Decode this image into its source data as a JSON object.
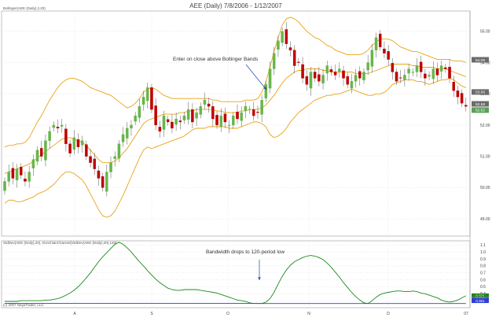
{
  "title": "AEE (Daily)  7/8/2006 - 1/12/2007",
  "upper_panel": {
    "indicator_label": "Bollinger(AEE (Daily),2,20)",
    "annotation": "Enter on close above Bollinger Bands"
  },
  "lower_panel": {
    "indicator_label": "StdDev(AEE (Daily),20), DonchianChannel(StdDev(AEE (Daily),20),120)",
    "annotation": "Bandwidth drops to 120-period low",
    "copyright": "(c) 2007 NinjaTrader, LLC"
  },
  "colors": {
    "up_candle": "#66b64a",
    "down_candle": "#c00000",
    "bollinger": "#e8a317",
    "stddev": "#1a8a1a",
    "donchian": "#2c3fd6",
    "grid": "#d8d8d8",
    "arrow": "#1f3fbf"
  },
  "chart_data": [
    {
      "type": "candlestick",
      "title": "AEE (Daily)  7/8/2006 - 1/12/2007",
      "x_ticks": [
        "A",
        "S",
        "O",
        "N",
        "D",
        "07"
      ],
      "y_ticks": [
        49.0,
        50.0,
        51.0,
        52.0,
        53.0,
        54.0,
        55.0
      ],
      "ylim": [
        48.45,
        55.65
      ],
      "price_labels": [
        "54.09",
        "53.06",
        "52.58",
        "52.62"
      ],
      "close": [
        50.2,
        50.5,
        50.3,
        50.6,
        50.4,
        50.2,
        50.5,
        50.9,
        51.2,
        51.0,
        51.5,
        51.8,
        52.0,
        51.9,
        52.0,
        51.4,
        51.1,
        51.6,
        51.3,
        51.5,
        51.0,
        50.8,
        50.6,
        50.3,
        50.0,
        50.5,
        50.8,
        51.0,
        51.4,
        51.7,
        51.9,
        52.0,
        52.3,
        52.6,
        52.9,
        53.2,
        52.5,
        52.0,
        51.8,
        52.3,
        52.1,
        51.9,
        52.2,
        52.1,
        52.3,
        52.5,
        52.1,
        52.4,
        52.6,
        52.8,
        52.6,
        52.2,
        52.0,
        52.3,
        52.1,
        52.0,
        52.3,
        52.2,
        52.4,
        52.6,
        52.5,
        52.3,
        52.4,
        52.8,
        53.3,
        53.8,
        54.3,
        54.7,
        55.0,
        54.6,
        54.4,
        53.9,
        54.0,
        53.5,
        53.3,
        53.7,
        53.5,
        53.4,
        53.6,
        53.9,
        53.7,
        53.6,
        53.8,
        53.5,
        53.3,
        53.4,
        53.6,
        53.5,
        53.7,
        54.0,
        54.4,
        54.8,
        54.5,
        54.3,
        54.1,
        53.7,
        53.4,
        53.5,
        53.6,
        53.8,
        53.7,
        53.9,
        53.7,
        53.5,
        53.6,
        53.8,
        53.6,
        53.9,
        53.8,
        53.5,
        53.1,
        52.9,
        52.7,
        52.6
      ],
      "series": [
        {
          "values": [
            49.5,
            49.6,
            49.6,
            49.55,
            49.55,
            49.6,
            49.65,
            49.7,
            49.8,
            49.85,
            49.9,
            50.0,
            50.1,
            50.25,
            50.4,
            50.5,
            50.5,
            50.45,
            50.35,
            50.25,
            50.05,
            49.8,
            49.55,
            49.3,
            49.1,
            49.05,
            49.1,
            49.25,
            49.5,
            49.75,
            50.05,
            50.35,
            50.65,
            50.95,
            51.2,
            51.3,
            51.25,
            51.3,
            51.35,
            51.4,
            51.45,
            51.5,
            51.55,
            51.6,
            51.65,
            51.75,
            51.85,
            51.9,
            51.9,
            51.9,
            51.95,
            51.95,
            51.95,
            51.95,
            51.95,
            51.9,
            51.9,
            51.9,
            51.95,
            52.0,
            52.05,
            52.1,
            52.1,
            52.05,
            51.95,
            51.7,
            51.6,
            51.65,
            51.75,
            51.9,
            52.1,
            52.25,
            52.4,
            52.5,
            52.6,
            52.7,
            52.8,
            52.85,
            52.9,
            52.95,
            52.95,
            53.0,
            53.0,
            53.05,
            53.1,
            53.15,
            53.1,
            53.05,
            53.0,
            52.95,
            52.95,
            53.0,
            53.0,
            53.05,
            53.15,
            53.3,
            53.35,
            53.4,
            53.45,
            53.45,
            53.45,
            53.4,
            53.4,
            53.35,
            53.3,
            53.35,
            53.4,
            53.45,
            53.45,
            53.5,
            53.45,
            53.35,
            53.25,
            53.2
          ]
        },
        {
          "values": [
            50.45,
            50.5,
            50.55,
            50.6,
            50.65,
            50.7,
            50.75,
            50.85,
            50.95,
            51.05,
            51.15,
            51.25,
            51.35,
            51.45,
            51.55,
            51.6,
            51.6,
            51.55,
            51.5,
            51.45,
            51.35,
            51.2,
            51.05,
            50.9,
            50.8,
            50.8,
            50.8,
            50.85,
            50.95,
            51.1,
            51.25,
            51.45,
            51.65,
            51.85,
            52.05,
            52.15,
            52.2,
            52.25,
            52.3,
            52.35,
            52.35,
            52.35,
            52.35,
            52.4,
            52.4,
            52.45,
            52.45,
            52.5,
            52.5,
            52.5,
            52.5,
            52.5,
            52.45,
            52.45,
            52.4,
            52.4,
            52.4,
            52.4,
            52.45,
            52.45,
            52.5,
            52.5,
            52.5,
            52.55,
            52.65,
            52.8,
            52.95,
            53.15,
            53.35,
            53.5,
            53.6,
            53.7,
            53.75,
            53.75,
            53.8,
            53.8,
            53.8,
            53.8,
            53.75,
            53.75,
            53.7,
            53.7,
            53.7,
            53.7,
            53.7,
            53.7,
            53.65,
            53.65,
            53.65,
            53.65,
            53.7,
            53.75,
            53.8,
            53.85,
            53.9,
            53.95,
            53.95,
            53.95,
            53.95,
            53.95,
            53.9,
            53.9,
            53.85,
            53.85,
            53.85,
            53.85,
            53.8,
            53.8,
            53.8,
            53.75,
            53.7,
            53.65,
            53.6,
            53.55
          ]
        },
        {
          "values": [
            51.3,
            51.35,
            51.35,
            51.4,
            51.4,
            51.45,
            51.6,
            51.85,
            52.1,
            52.3,
            52.55,
            52.8,
            53.0,
            53.2,
            53.35,
            53.45,
            53.5,
            53.5,
            53.45,
            53.4,
            53.3,
            53.2,
            53.15,
            53.1,
            53.05,
            53.0,
            52.95,
            52.85,
            52.75,
            52.65,
            52.55,
            52.6,
            52.7,
            52.85,
            53.05,
            53.15,
            53.2,
            53.15,
            53.05,
            52.95,
            52.9,
            52.85,
            52.85,
            52.85,
            52.85,
            52.85,
            52.85,
            52.85,
            52.85,
            52.85,
            52.85,
            52.8,
            52.8,
            52.75,
            52.75,
            52.75,
            52.75,
            52.75,
            52.75,
            52.8,
            52.8,
            52.8,
            52.85,
            53.05,
            53.4,
            53.85,
            54.35,
            54.8,
            55.2,
            55.4,
            55.45,
            55.4,
            55.3,
            55.15,
            55.0,
            54.9,
            54.8,
            54.75,
            54.65,
            54.55,
            54.5,
            54.4,
            54.35,
            54.3,
            54.25,
            54.25,
            54.25,
            54.25,
            54.3,
            54.4,
            54.55,
            54.65,
            54.75,
            54.75,
            54.75,
            54.7,
            54.6,
            54.5,
            54.45,
            54.4,
            54.35,
            54.35,
            54.3,
            54.25,
            54.2,
            54.15,
            54.1,
            54.1,
            54.1,
            54.1,
            54.05,
            54.05,
            54.05,
            54.0
          ]
        }
      ]
    },
    {
      "type": "line",
      "y_ticks": [
        0.3,
        0.4,
        0.5,
        0.6,
        0.7,
        0.8,
        0.9,
        1.0,
        1.1
      ],
      "ylim": [
        0.2,
        1.16
      ],
      "price_labels": [
        "0.371",
        "0.326",
        "0.301"
      ],
      "series": [
        {
          "values": [
            0.29,
            0.29,
            0.29,
            0.29,
            0.3,
            0.3,
            0.3,
            0.3,
            0.3,
            0.3,
            0.31,
            0.31,
            0.32,
            0.33,
            0.35,
            0.38,
            0.41,
            0.45,
            0.5,
            0.56,
            0.63,
            0.7,
            0.78,
            0.86,
            0.93,
            0.99,
            1.05,
            1.11,
            1.14,
            1.11,
            1.06,
            1.0,
            0.93,
            0.86,
            0.8,
            0.73,
            0.67,
            0.61,
            0.56,
            0.52,
            0.48,
            0.46,
            0.45,
            0.45,
            0.46,
            0.46,
            0.46,
            0.46,
            0.45,
            0.44,
            0.43,
            0.42,
            0.41,
            0.39,
            0.37,
            0.35,
            0.33,
            0.31,
            0.3,
            0.29,
            0.27,
            0.26,
            0.26,
            0.26,
            0.28,
            0.33,
            0.42,
            0.54,
            0.65,
            0.74,
            0.81,
            0.86,
            0.89,
            0.92,
            0.94,
            0.95,
            0.94,
            0.92,
            0.89,
            0.84,
            0.78,
            0.71,
            0.64,
            0.56,
            0.49,
            0.42,
            0.36,
            0.31,
            0.27,
            0.26,
            0.3,
            0.35,
            0.39,
            0.41,
            0.42,
            0.43,
            0.44,
            0.44,
            0.43,
            0.43,
            0.44,
            0.43,
            0.41,
            0.4,
            0.38,
            0.36,
            0.34,
            0.31,
            0.29,
            0.28,
            0.29,
            0.31,
            0.34,
            0.371
          ]
        },
        {
          "values": [
            0.261,
            0.261,
            0.261,
            0.261,
            0.261,
            0.261,
            0.261,
            0.261,
            0.261,
            0.261,
            0.261,
            0.261,
            0.261,
            0.261,
            0.261,
            0.261,
            0.261,
            0.261,
            0.261,
            0.261,
            0.261,
            0.261,
            0.261,
            0.261,
            0.261,
            0.261,
            0.261,
            0.261,
            0.261,
            0.261,
            0.261,
            0.261,
            0.261,
            0.261,
            0.261,
            0.261,
            0.261,
            0.261,
            0.261,
            0.261,
            0.261,
            0.261,
            0.261,
            0.261,
            0.261,
            0.261,
            0.261,
            0.261,
            0.261,
            0.261,
            0.261,
            0.261,
            0.261,
            0.261,
            0.261,
            0.261,
            0.261,
            0.261,
            0.261,
            0.261,
            0.261,
            0.261,
            0.261,
            0.26,
            0.26,
            0.26,
            0.26,
            0.26,
            0.26,
            0.26,
            0.26,
            0.26,
            0.26,
            0.26,
            0.26,
            0.26,
            0.26,
            0.26,
            0.26,
            0.26,
            0.26,
            0.26,
            0.26,
            0.26,
            0.26,
            0.26,
            0.26,
            0.26,
            0.26,
            0.26,
            0.26,
            0.26,
            0.26,
            0.26,
            0.26,
            0.26,
            0.26,
            0.26,
            0.26,
            0.26,
            0.26,
            0.26,
            0.26,
            0.26,
            0.26,
            0.26,
            0.26,
            0.26,
            0.26,
            0.26,
            0.26,
            0.26,
            0.26,
            0.26
          ]
        }
      ]
    }
  ]
}
